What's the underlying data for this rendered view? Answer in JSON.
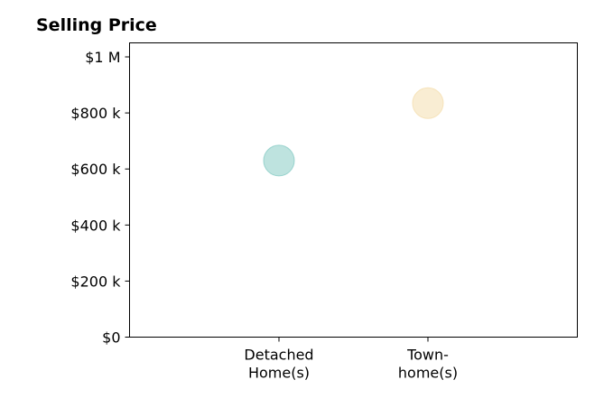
{
  "chart_data": {
    "type": "scatter",
    "title": "Selling Price",
    "xlabel": "",
    "ylabel": "",
    "categories": [
      {
        "lines": [
          "Detached",
          "Home(s)"
        ]
      },
      {
        "lines": [
          "Town-",
          "home(s)"
        ]
      }
    ],
    "points": [
      {
        "category_index": 0,
        "value": 630000,
        "color": "#7ec8c0"
      },
      {
        "category_index": 1,
        "value": 835000,
        "color": "#f3dba8"
      }
    ],
    "ylim": [
      0,
      1050000
    ],
    "yticks": [
      {
        "value": 0,
        "label": "$0"
      },
      {
        "value": 200000,
        "label": "$200 k"
      },
      {
        "value": 400000,
        "label": "$400 k"
      },
      {
        "value": 600000,
        "label": "$600 k"
      },
      {
        "value": 800000,
        "label": "$800 k"
      },
      {
        "value": 1000000,
        "label": "$1 M"
      }
    ],
    "grid": false,
    "legend": "none"
  }
}
